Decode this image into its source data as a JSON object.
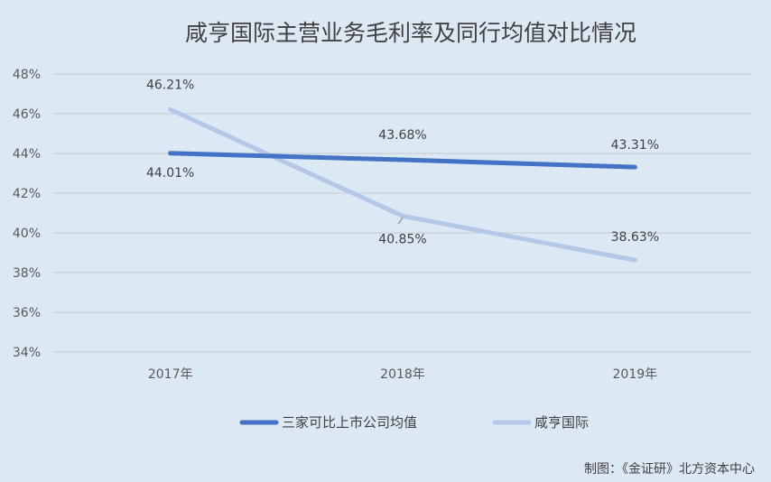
{
  "chart_data": {
    "type": "line",
    "title": "咸亨国际主营业务毛利率及同行均值对比情况",
    "categories": [
      "2017年",
      "2018年",
      "2019年"
    ],
    "series": [
      {
        "name": "三家可比上市公司均值",
        "values": [
          44.01,
          43.68,
          43.31
        ],
        "labels": [
          "44.01%",
          "43.68%",
          "43.31%"
        ],
        "color": "#4472c4"
      },
      {
        "name": "咸亨国际",
        "values": [
          46.21,
          40.85,
          38.63
        ],
        "labels": [
          "46.21%",
          "40.85%",
          "38.63%"
        ],
        "color": "#b4c7e7"
      }
    ],
    "y_ticks": [
      "48%",
      "46%",
      "44%",
      "42%",
      "40%",
      "38%",
      "36%",
      "34%"
    ],
    "ylim": [
      34,
      48
    ],
    "grid": true,
    "legend_position": "bottom",
    "source": "制图：《金证研》北方资本中心"
  }
}
